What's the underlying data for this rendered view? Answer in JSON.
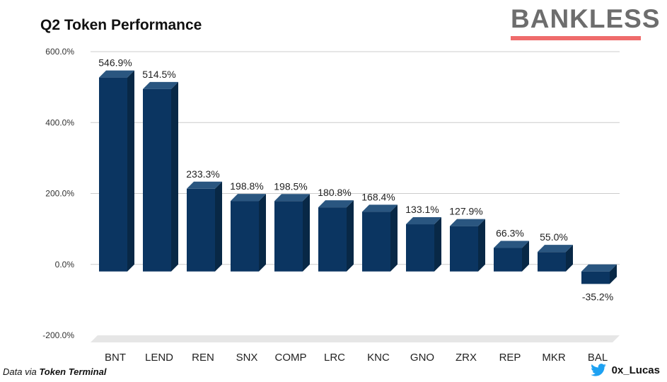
{
  "header": {
    "title": "Q2 Token Performance",
    "brand": "BANKLESS"
  },
  "footer": {
    "source_prefix": "Data via ",
    "source_name": "Token Terminal",
    "handle": "0x_Lucas",
    "handle_icon": "twitter-bird-icon"
  },
  "colors": {
    "bar_front": "#0b3561",
    "bar_top": "#2a5680",
    "bar_side": "#082846",
    "brand_underline": "#ef6b6b",
    "twitter_blue": "#1da1f2"
  },
  "chart_data": {
    "type": "bar",
    "title": "Q2 Token Performance",
    "categories": [
      "BNT",
      "LEND",
      "REN",
      "SNX",
      "COMP",
      "LRC",
      "KNC",
      "GNO",
      "ZRX",
      "REP",
      "MKR",
      "BAL"
    ],
    "values": [
      546.9,
      514.5,
      233.3,
      198.8,
      198.5,
      180.8,
      168.4,
      133.1,
      127.9,
      66.3,
      55.0,
      -35.2
    ],
    "value_labels": [
      "546.9%",
      "514.5%",
      "233.3%",
      "198.8%",
      "198.5%",
      "180.8%",
      "168.4%",
      "133.1%",
      "127.9%",
      "66.3%",
      "55.0%",
      "-35.2%"
    ],
    "yticks": [
      600,
      400,
      200,
      0,
      -200
    ],
    "ytick_labels": [
      "600.0%",
      "400.0%",
      "200.0%",
      "0.0%",
      "-200.0%"
    ],
    "ylim": [
      -200,
      600
    ],
    "xlabel": "",
    "ylabel": "",
    "grid": true,
    "legend": "none"
  }
}
